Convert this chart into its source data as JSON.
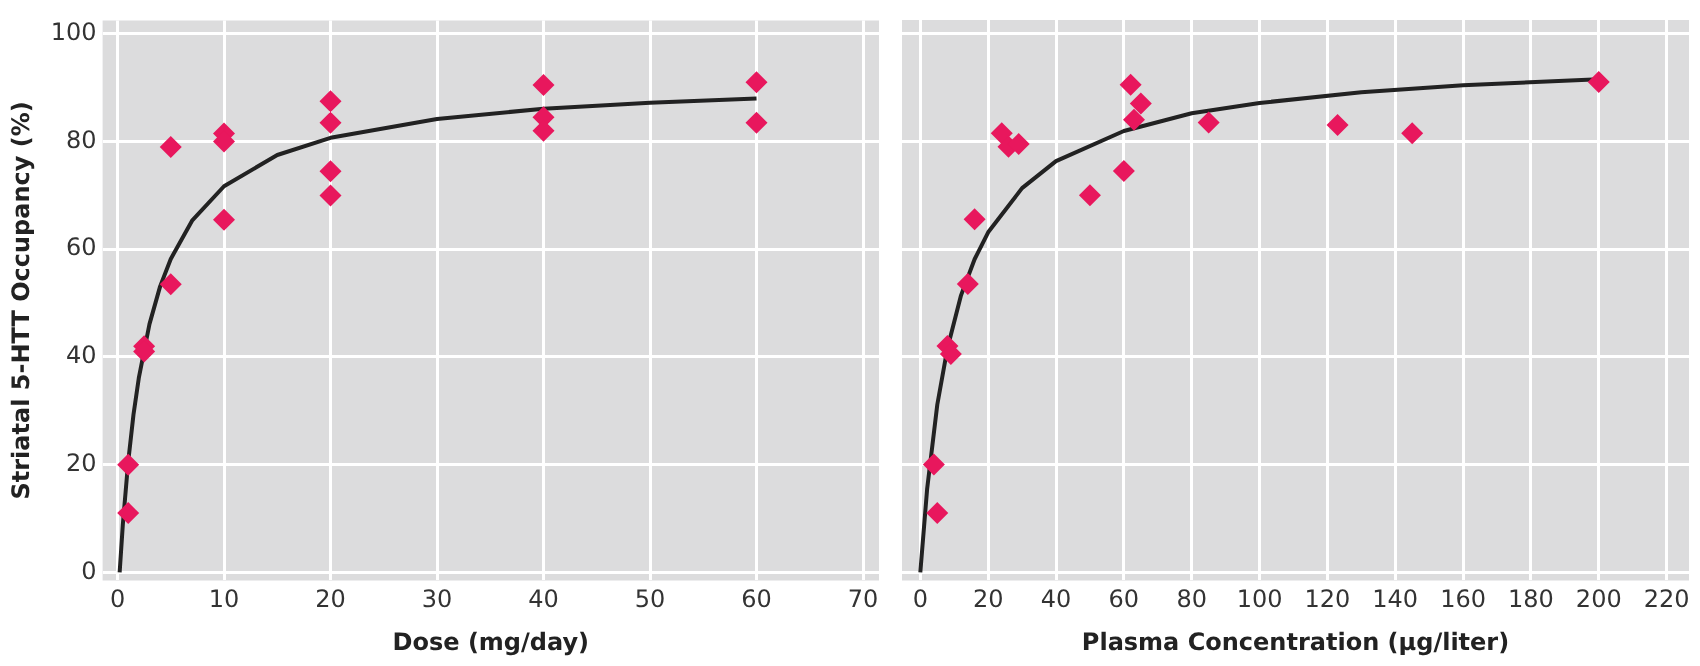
{
  "chart_data": [
    {
      "type": "scatter",
      "xlabel": "Dose (mg/day)",
      "ylabel": "Striatal 5-HTT Occupancy (%)",
      "xlim": [
        -1.4,
        71.5
      ],
      "xticks": [
        0,
        10,
        20,
        30,
        40,
        50,
        60,
        70
      ],
      "ylim": [
        -1.5,
        102.5
      ],
      "yticks": [
        0,
        20,
        40,
        60,
        80,
        100
      ],
      "grid": true,
      "marker": "diamond",
      "series": [
        {
          "type": "scatter",
          "color": "#e8175d",
          "x": [
            1,
            1,
            2.5,
            2.5,
            5,
            5,
            10,
            10,
            10,
            20,
            20,
            20,
            20,
            40,
            40,
            40,
            60,
            60
          ],
          "values": [
            20,
            11,
            42,
            41,
            79,
            53.5,
            81.5,
            80,
            65.5,
            87.5,
            83.5,
            74.5,
            70,
            90.5,
            84.5,
            82,
            91,
            83.5
          ]
        },
        {
          "type": "line",
          "color": "#222222",
          "marker": "none",
          "x": [
            0.2,
            0.5,
            1,
            1.5,
            2,
            3,
            4,
            5,
            7,
            10,
            15,
            20,
            30,
            40,
            50,
            60
          ],
          "values": [
            0,
            8.9,
            20.5,
            29.3,
            36.1,
            46.1,
            53.1,
            58.2,
            65.3,
            71.7,
            77.5,
            80.7,
            84.2,
            86.1,
            87.2,
            88
          ]
        }
      ]
    },
    {
      "type": "scatter",
      "xlabel": "Plasma Concentration (µg/liter)",
      "xlim": [
        -5.4,
        226.6
      ],
      "xticks": [
        0,
        20,
        40,
        60,
        80,
        100,
        120,
        140,
        160,
        180,
        200,
        220
      ],
      "ylim": [
        -1.5,
        102.5
      ],
      "yticks": [
        0,
        20,
        40,
        60,
        80,
        100
      ],
      "tick_labels": "x",
      "grid": true,
      "marker": "diamond",
      "series": [
        {
          "type": "scatter",
          "color": "#e8175d",
          "x": [
            4,
            5,
            8,
            9,
            14,
            16,
            24,
            26,
            29,
            50,
            60,
            62,
            63,
            65,
            85,
            123,
            145,
            200
          ],
          "values": [
            20,
            11,
            42,
            40.5,
            53.5,
            65.5,
            81.5,
            79,
            79.5,
            70,
            74.5,
            90.5,
            84,
            87,
            83.5,
            83,
            81.5,
            91
          ]
        },
        {
          "type": "line",
          "color": "#222222",
          "marker": "none",
          "x": [
            0,
            2,
            5,
            8,
            12,
            16,
            20,
            30,
            40,
            60,
            80,
            100,
            130,
            160,
            200
          ],
          "values": [
            0,
            15.4,
            31.1,
            41.6,
            51.4,
            58.1,
            63.1,
            71.3,
            76.3,
            81.9,
            85.2,
            87.1,
            89.1,
            90.4,
            91.5
          ]
        }
      ]
    }
  ]
}
